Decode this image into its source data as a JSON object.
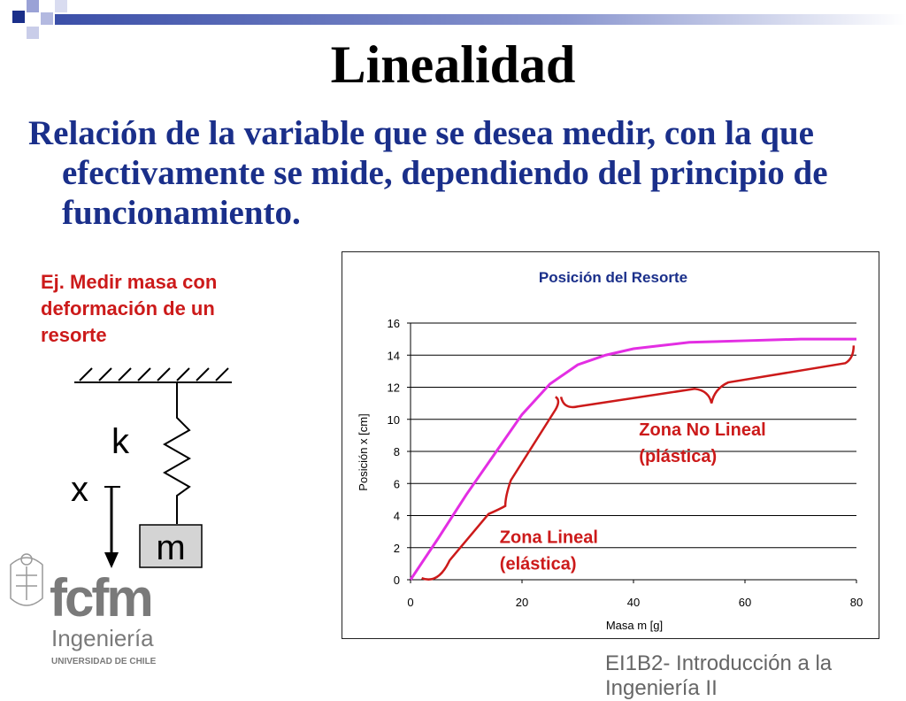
{
  "slide": {
    "title": "Linealidad",
    "lead": "Relación de la variable que se desea medir, con la que efectivamente se mide, dependiendo del principio de funcionamiento.",
    "example": "Ej. Medir masa con deformación de un resorte",
    "footer": "EI1B2- Introducción a la Ingeniería II",
    "colors": {
      "accent_blue": "#1a2f8a",
      "accent_red": "#cc1a1a",
      "bar_blue": "#3b4fa8"
    }
  },
  "diagram": {
    "spring_label": "k",
    "displacement_label": "x",
    "mass_label": "m"
  },
  "logo": {
    "wordmark": "fcfm",
    "sub": "Ingeniería",
    "university": "UNIVERSIDAD DE CHILE",
    "icon": "university-seal-icon"
  },
  "chart_data": {
    "type": "line",
    "title": "Posición del Resorte",
    "xlabel": "Masa m [g]",
    "ylabel": "Posición x [cm]",
    "xlim": [
      0,
      80
    ],
    "ylim": [
      0,
      16
    ],
    "xticks": [
      "0",
      "20",
      "40",
      "60",
      "80"
    ],
    "yticks": [
      "0",
      "2",
      "4",
      "6",
      "8",
      "10",
      "12",
      "14",
      "16"
    ],
    "grid": "horizontal",
    "line_color": "#e32ee3",
    "series": [
      {
        "x": [
          0,
          5,
          10,
          15,
          20,
          25,
          30,
          35,
          40,
          45,
          50,
          55,
          60,
          65,
          70,
          75,
          80
        ],
        "y": [
          0,
          2.6,
          5.3,
          7.8,
          10.3,
          12.2,
          13.4,
          14.0,
          14.4,
          14.6,
          14.8,
          14.85,
          14.9,
          14.95,
          15.0,
          15.0,
          15.0
        ]
      }
    ],
    "annotations": [
      {
        "text": "Zona Lineal (elástica)",
        "x": 16,
        "y": 2.3
      },
      {
        "text": "Zona No Lineal (plástica)",
        "x": 41,
        "y": 9.0
      }
    ]
  }
}
